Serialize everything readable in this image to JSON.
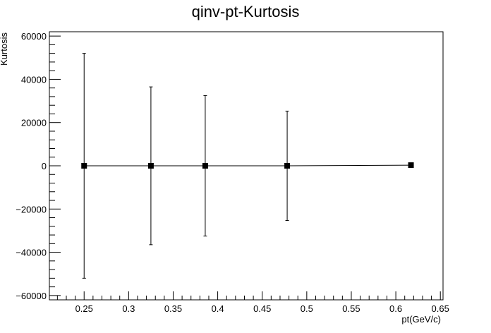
{
  "chart_data": {
    "type": "scatter",
    "title": "qinv-pt-Kurtosis",
    "xlabel": "pt(GeV/c)",
    "ylabel": "Kurtosis",
    "xlim": [
      0.211,
      0.653
    ],
    "ylim": [
      -62000,
      62000
    ],
    "xticks": [
      0.25,
      0.3,
      0.35,
      0.4,
      0.45,
      0.5,
      0.55,
      0.6,
      0.65
    ],
    "xtick_labels": [
      "0.25",
      "0.3",
      "0.35",
      "0.4",
      "0.45",
      "0.5",
      "0.55",
      "0.6",
      "0.65"
    ],
    "yticks": [
      -60000,
      -40000,
      -20000,
      0,
      20000,
      40000,
      60000
    ],
    "ytick_labels": [
      "−60000",
      "−40000",
      "−20000",
      "0",
      "20000",
      "40000",
      "60000"
    ],
    "grid": false,
    "legend": "none",
    "series": [
      {
        "x": [
          0.25,
          0.325,
          0.386,
          0.478,
          0.617
        ],
        "y": [
          0,
          0,
          0,
          0,
          300
        ],
        "yerr": [
          52000,
          36500,
          32500,
          25300,
          0
        ],
        "marker": "square",
        "connected": true
      }
    ]
  }
}
